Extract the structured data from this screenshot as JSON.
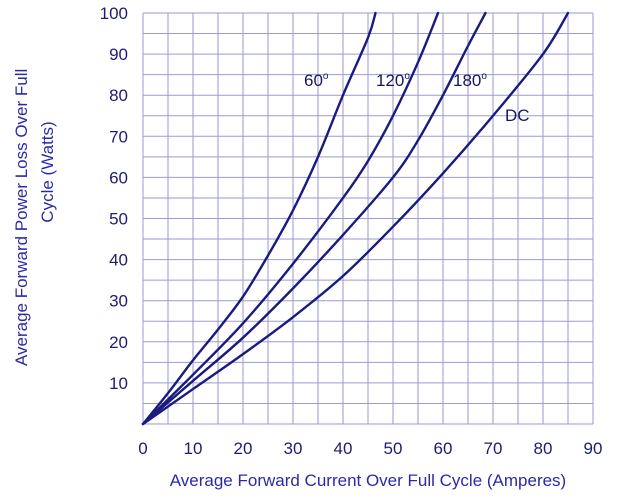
{
  "chart_data": {
    "type": "line",
    "title": "",
    "xlabel": "Average Forward Current Over Full Cycle (Amperes)",
    "ylabel_lines": [
      "Average Forward Power Loss Over Full",
      "Cycle (Watts)"
    ],
    "xlim": [
      0,
      90
    ],
    "ylim": [
      0,
      100
    ],
    "x_ticks": [
      0,
      10,
      20,
      30,
      40,
      50,
      60,
      70,
      80,
      90
    ],
    "y_ticks": [
      10,
      20,
      30,
      40,
      50,
      60,
      70,
      80,
      90,
      100
    ],
    "grid": true,
    "series": [
      {
        "name": "60",
        "sup": "o",
        "x": [
          0,
          5,
          10,
          15,
          20,
          25,
          30,
          35,
          40,
          45,
          46.5
        ],
        "y": [
          0,
          7.5,
          15.5,
          23,
          31,
          41,
          52,
          65,
          80,
          94,
          100
        ]
      },
      {
        "name": "120",
        "sup": "o",
        "x": [
          0,
          10,
          20,
          30,
          40,
          45,
          50,
          55,
          59
        ],
        "y": [
          0,
          12,
          24.5,
          39,
          55,
          64,
          75,
          88,
          100
        ]
      },
      {
        "name": "180",
        "sup": "o",
        "x": [
          0,
          10,
          20,
          30,
          40,
          50,
          55,
          60,
          65,
          68.5
        ],
        "y": [
          0,
          10.5,
          21,
          33,
          46,
          60,
          69,
          80,
          92,
          100
        ]
      },
      {
        "name": "DC",
        "sup": "",
        "x": [
          0,
          10,
          20,
          30,
          40,
          50,
          60,
          70,
          80,
          85
        ],
        "y": [
          0,
          8.5,
          17,
          26,
          36,
          48,
          61,
          75,
          90,
          100
        ]
      }
    ],
    "line_color": "#1a1a80",
    "grid_color": "#9a9ad4",
    "label_color": "#2a2aa8"
  }
}
